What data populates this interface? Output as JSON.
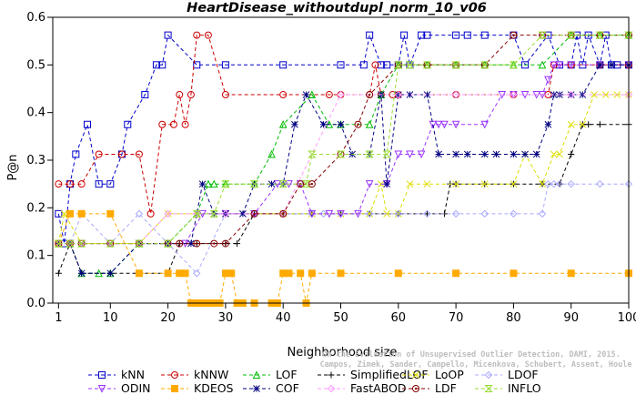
{
  "chart_data": {
    "type": "line",
    "title": "HeartDisease_withoutdupl_norm_10_v06",
    "xlabel": "Neighborhood size",
    "ylabel": "P@n",
    "xlim": [
      0,
      100
    ],
    "ylim": [
      0,
      0.6
    ],
    "xticks": [
      1,
      10,
      20,
      30,
      40,
      50,
      60,
      70,
      80,
      90,
      100
    ],
    "yticks": [
      0.0,
      0.1,
      0.2,
      0.3,
      0.4,
      0.5,
      0.6
    ],
    "grid": false,
    "legend_position": "bottom",
    "credit_lines": [
      "On the Evaluation of Unsupervised Outlier Detection, DAMI, 2015.",
      "Campos, Zimek, Sander, Campello, Micenkova, Schubert, Assent, Houle"
    ],
    "series": [
      {
        "name": "kNN",
        "color": "#0000cc",
        "marker": "square",
        "x": [
          1,
          2,
          3,
          4,
          6,
          8,
          10,
          12,
          13,
          16,
          18,
          19,
          20,
          25,
          30,
          40,
          50,
          54,
          55,
          57,
          58,
          60,
          61,
          62,
          64,
          65,
          70,
          72,
          75,
          80,
          82,
          86,
          88,
          90,
          91,
          92,
          93,
          95,
          96,
          97,
          98,
          100
        ],
        "y": [
          0.1875,
          0.125,
          0.25,
          0.3125,
          0.375,
          0.25,
          0.25,
          0.3125,
          0.375,
          0.4375,
          0.5,
          0.5,
          0.5625,
          0.5,
          0.5,
          0.5,
          0.5,
          0.5,
          0.5625,
          0.5,
          0.5,
          0.5,
          0.5625,
          0.5,
          0.5625,
          0.5625,
          0.5625,
          0.5625,
          0.5625,
          0.5625,
          0.5,
          0.5625,
          0.5,
          0.5,
          0.5625,
          0.5,
          0.5625,
          0.5,
          0.5625,
          0.5,
          0.5,
          0.5
        ]
      },
      {
        "name": "kNNW",
        "color": "#cc0000",
        "marker": "circle",
        "x": [
          1,
          3,
          5,
          8,
          12,
          15,
          17,
          19,
          21,
          22,
          23,
          24,
          25,
          27,
          30,
          40,
          48,
          50,
          55,
          56,
          57,
          59,
          60,
          70,
          80,
          86,
          87,
          90,
          95,
          100
        ],
        "y": [
          0.25,
          0.25,
          0.25,
          0.3125,
          0.3125,
          0.3125,
          0.1875,
          0.375,
          0.375,
          0.4375,
          0.375,
          0.4375,
          0.5625,
          0.5625,
          0.4375,
          0.4375,
          0.4375,
          0.4375,
          0.4375,
          0.5,
          0.4375,
          0.4375,
          0.4375,
          0.4375,
          0.4375,
          0.4375,
          0.5,
          0.5,
          0.5,
          0.5
        ]
      },
      {
        "name": "LOF",
        "color": "#00bb00",
        "marker": "triangle-up",
        "x": [
          1,
          3,
          5,
          8,
          10,
          15,
          20,
          25,
          27,
          28,
          30,
          35,
          38,
          40,
          45,
          48,
          50,
          55,
          57,
          60,
          65,
          70,
          75,
          80,
          85,
          90,
          95,
          100
        ],
        "y": [
          0.125,
          0.125,
          0.0625,
          0.0625,
          0.0625,
          0.125,
          0.125,
          0.1875,
          0.25,
          0.25,
          0.25,
          0.25,
          0.3125,
          0.375,
          0.4375,
          0.375,
          0.375,
          0.375,
          0.4375,
          0.5,
          0.5,
          0.5,
          0.5,
          0.5,
          0.5,
          0.5625,
          0.5625,
          0.5625
        ]
      },
      {
        "name": "SimplifiedLOF",
        "color": "#000000",
        "marker": "plus",
        "x": [
          1,
          3,
          5,
          10,
          15,
          20,
          22,
          25,
          30,
          32,
          35,
          40,
          45,
          50,
          55,
          60,
          65,
          68,
          69,
          70,
          75,
          80,
          85,
          88,
          90,
          92,
          93,
          95,
          100
        ],
        "y": [
          0.0625,
          0.125,
          0.0625,
          0.0625,
          0.0625,
          0.0625,
          0.125,
          0.125,
          0.125,
          0.125,
          0.1875,
          0.1875,
          0.1875,
          0.1875,
          0.1875,
          0.1875,
          0.1875,
          0.1875,
          0.25,
          0.25,
          0.25,
          0.25,
          0.25,
          0.25,
          0.3125,
          0.375,
          0.375,
          0.375,
          0.375
        ]
      },
      {
        "name": "LoOP",
        "color": "#dddd00",
        "marker": "x",
        "x": [
          1,
          2,
          5,
          10,
          15,
          20,
          25,
          30,
          40,
          45,
          50,
          55,
          57,
          58,
          60,
          62,
          65,
          70,
          75,
          80,
          82,
          85,
          87,
          88,
          90,
          92,
          94,
          96,
          98,
          100
        ],
        "y": [
          0.125,
          0.1875,
          0.125,
          0.125,
          0.125,
          0.1875,
          0.1875,
          0.1875,
          0.1875,
          0.1875,
          0.1875,
          0.1875,
          0.25,
          0.1875,
          0.1875,
          0.25,
          0.25,
          0.25,
          0.25,
          0.25,
          0.3125,
          0.25,
          0.3125,
          0.3125,
          0.375,
          0.375,
          0.4375,
          0.4375,
          0.4375,
          0.4375
        ]
      },
      {
        "name": "LDOF",
        "color": "#aaaaff",
        "marker": "diamond",
        "x": [
          1,
          3,
          5,
          10,
          15,
          20,
          25,
          30,
          35,
          40,
          45,
          47,
          50,
          55,
          60,
          65,
          70,
          75,
          80,
          85,
          86,
          87,
          88,
          90,
          95,
          100
        ],
        "y": [
          0.125,
          0.125,
          0.1875,
          0.125,
          0.1875,
          0.125,
          0.0625,
          0.1875,
          0.1875,
          0.1875,
          0.1875,
          0.1875,
          0.1875,
          0.1875,
          0.1875,
          0.1875,
          0.1875,
          0.1875,
          0.1875,
          0.1875,
          0.25,
          0.25,
          0.25,
          0.25,
          0.25,
          0.25
        ]
      },
      {
        "name": "ODIN",
        "color": "#9933ff",
        "marker": "triangle-down",
        "x": [
          1,
          3,
          5,
          10,
          15,
          20,
          23,
          26,
          30,
          35,
          39,
          41,
          43,
          45,
          48,
          50,
          53,
          55,
          58,
          60,
          62,
          64,
          66,
          67,
          68,
          70,
          75,
          78,
          80,
          82,
          84,
          85,
          86,
          87,
          88,
          90,
          95,
          100
        ],
        "y": [
          0.125,
          0.125,
          0.125,
          0.125,
          0.125,
          0.125,
          0.125,
          0.1875,
          0.1875,
          0.1875,
          0.25,
          0.25,
          0.25,
          0.1875,
          0.1875,
          0.1875,
          0.1875,
          0.25,
          0.25,
          0.3125,
          0.3125,
          0.3125,
          0.375,
          0.375,
          0.375,
          0.375,
          0.375,
          0.4375,
          0.4375,
          0.4375,
          0.4375,
          0.4375,
          0.4688,
          0.5,
          0.5,
          0.5,
          0.5,
          0.5
        ]
      },
      {
        "name": "KDEOS",
        "color": "#ffaa00",
        "marker": "square-filled",
        "x": [
          1,
          3,
          5,
          10,
          15,
          20,
          22,
          23,
          24,
          25,
          26,
          27,
          28,
          29,
          30,
          31,
          32,
          33,
          35,
          38,
          39,
          40,
          41,
          43,
          44,
          45,
          50,
          60,
          70,
          80,
          90,
          100
        ],
        "y": [
          0.125,
          0.1875,
          0.1875,
          0.1875,
          0.0625,
          0.0625,
          0.0625,
          0.0625,
          0.0,
          0.0,
          0.0,
          0.0,
          0.0,
          0.0,
          0.0625,
          0.0625,
          0.0,
          0.0,
          0.0,
          0.0,
          0.0,
          0.0625,
          0.0625,
          0.0625,
          0.0,
          0.0625,
          0.0625,
          0.0625,
          0.0625,
          0.0625,
          0.0625,
          0.0625
        ]
      },
      {
        "name": "COF",
        "color": "#000080",
        "marker": "star",
        "x": [
          1,
          3,
          5,
          10,
          15,
          20,
          24,
          26,
          28,
          30,
          33,
          35,
          38,
          40,
          42,
          44,
          47,
          50,
          52,
          55,
          57,
          58,
          60,
          62,
          65,
          67,
          70,
          72,
          75,
          77,
          80,
          82,
          84,
          86,
          87,
          88,
          90,
          92,
          95,
          97,
          100
        ],
        "y": [
          0.125,
          0.125,
          0.0625,
          0.0625,
          0.125,
          0.125,
          0.125,
          0.25,
          0.1875,
          0.1875,
          0.1875,
          0.25,
          0.25,
          0.25,
          0.375,
          0.4375,
          0.375,
          0.375,
          0.3125,
          0.3125,
          0.4375,
          0.25,
          0.4375,
          0.4375,
          0.4375,
          0.3125,
          0.3125,
          0.3125,
          0.3125,
          0.3125,
          0.3125,
          0.3125,
          0.3125,
          0.375,
          0.4375,
          0.4375,
          0.4375,
          0.4375,
          0.5,
          0.5,
          0.5
        ]
      },
      {
        "name": "FastABOD",
        "color": "#ff99ff",
        "marker": "diamond-open",
        "x": [
          1,
          3,
          5,
          10,
          15,
          20,
          25,
          30,
          40,
          50,
          60,
          70,
          80,
          90,
          100
        ],
        "y": [
          0.125,
          0.125,
          0.125,
          0.125,
          0.125,
          0.1875,
          0.1875,
          0.1875,
          0.1875,
          0.4375,
          0.4375,
          0.4375,
          0.4375,
          0.4375,
          0.4375
        ]
      },
      {
        "name": "LDF",
        "color": "#880000",
        "marker": "circle-dot",
        "x": [
          1,
          3,
          5,
          10,
          15,
          20,
          22,
          25,
          28,
          30,
          35,
          40,
          43,
          45,
          50,
          53,
          55,
          60,
          65,
          70,
          75,
          80,
          85,
          90,
          95,
          100
        ],
        "y": [
          0.125,
          0.125,
          0.125,
          0.125,
          0.125,
          0.125,
          0.125,
          0.125,
          0.125,
          0.125,
          0.1875,
          0.1875,
          0.25,
          0.25,
          0.3125,
          0.375,
          0.4375,
          0.5,
          0.5,
          0.5,
          0.5,
          0.5625,
          0.5625,
          0.5625,
          0.5625,
          0.5625
        ]
      },
      {
        "name": "INFLO",
        "color": "#99dd33",
        "marker": "hourglass",
        "x": [
          1,
          3,
          5,
          10,
          15,
          20,
          25,
          28,
          30,
          35,
          40,
          44,
          45,
          50,
          55,
          58,
          60,
          62,
          65,
          70,
          75,
          80,
          85,
          90,
          95,
          100
        ],
        "y": [
          0.125,
          0.125,
          0.125,
          0.125,
          0.125,
          0.125,
          0.1875,
          0.1875,
          0.25,
          0.25,
          0.25,
          0.25,
          0.3125,
          0.3125,
          0.3125,
          0.3125,
          0.5,
          0.5,
          0.5,
          0.5,
          0.5,
          0.5,
          0.5625,
          0.5625,
          0.5625,
          0.5625
        ]
      }
    ]
  }
}
